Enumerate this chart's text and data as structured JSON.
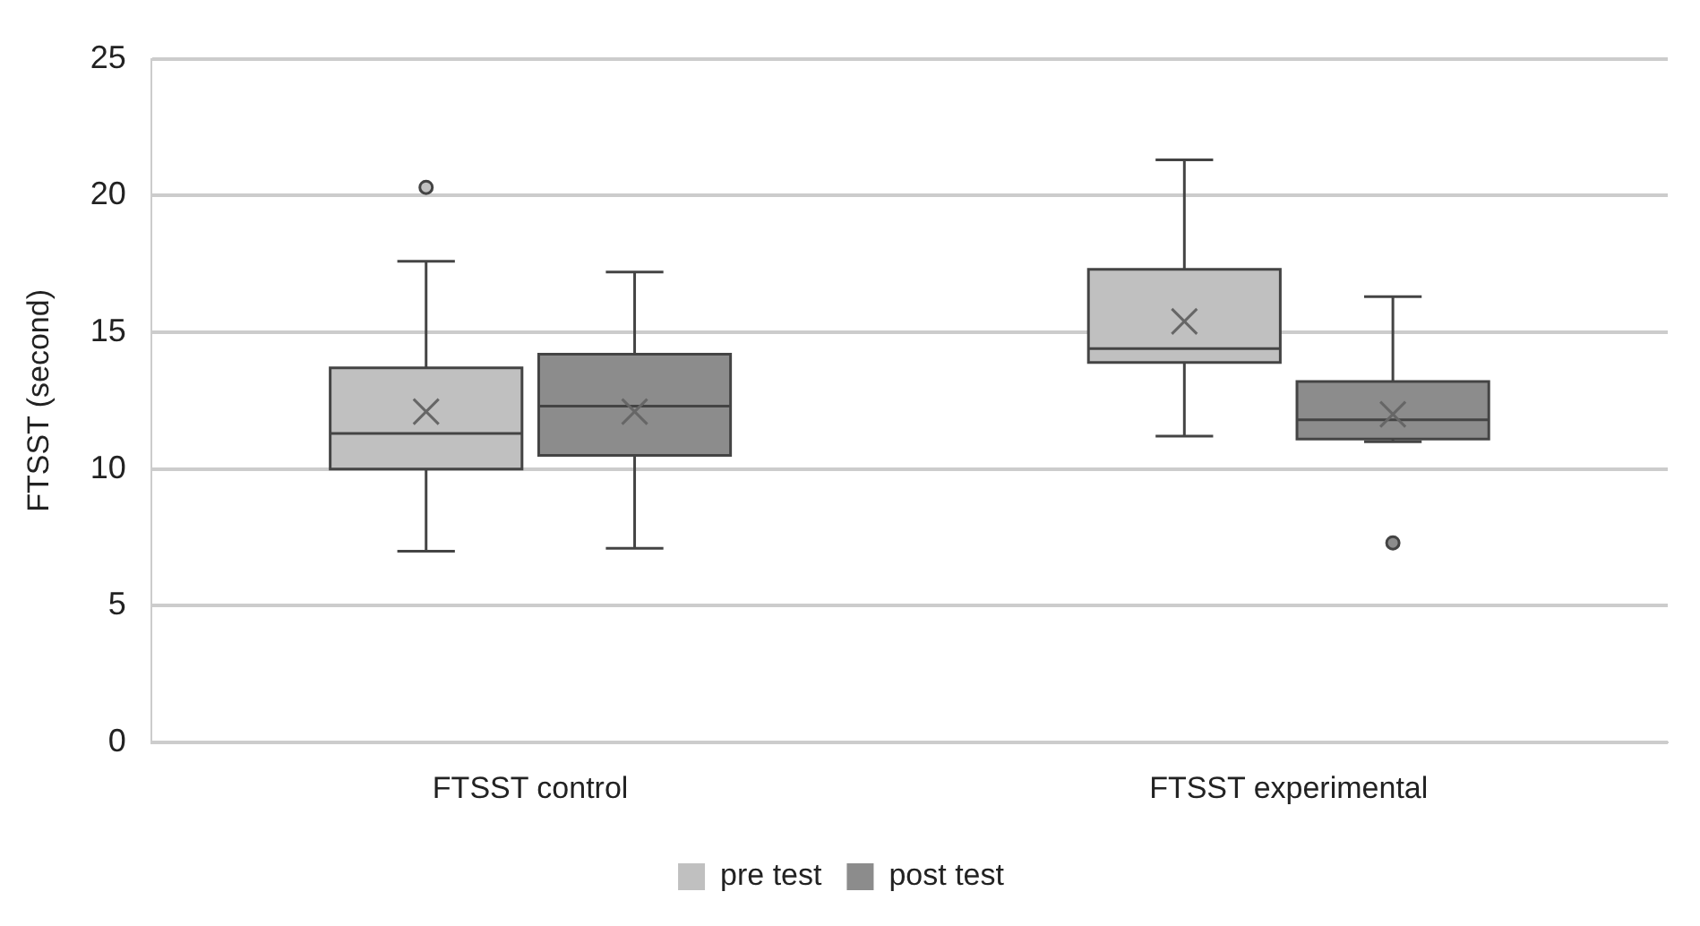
{
  "chart_data": {
    "type": "box",
    "ylabel": "FTSST (second)",
    "categories": [
      "FTSST control",
      "FTSST experimental"
    ],
    "series": [
      {
        "name": "pre test",
        "color": "#c0c0c0",
        "boxes": [
          {
            "low": 7.0,
            "q1": 10.0,
            "median": 11.3,
            "q3": 13.7,
            "high": 17.6,
            "mean": 12.1,
            "outliers": [
              20.3
            ]
          },
          {
            "low": 11.2,
            "q1": 13.9,
            "median": 14.4,
            "q3": 17.3,
            "high": 21.3,
            "mean": 15.4
          }
        ]
      },
      {
        "name": "post test",
        "color": "#8c8c8c",
        "boxes": [
          {
            "low": 7.1,
            "q1": 10.5,
            "median": 12.3,
            "q3": 14.2,
            "high": 17.2,
            "mean": 12.1
          },
          {
            "low": 11.0,
            "q1": 11.1,
            "median": 11.8,
            "q3": 13.2,
            "high": 16.3,
            "mean": 12.0,
            "outliers": [
              7.3
            ]
          }
        ]
      }
    ],
    "ylim": [
      0,
      25
    ],
    "yticks": [
      0,
      5,
      10,
      15,
      20,
      25
    ],
    "grid": "y",
    "legend": "bottom"
  }
}
